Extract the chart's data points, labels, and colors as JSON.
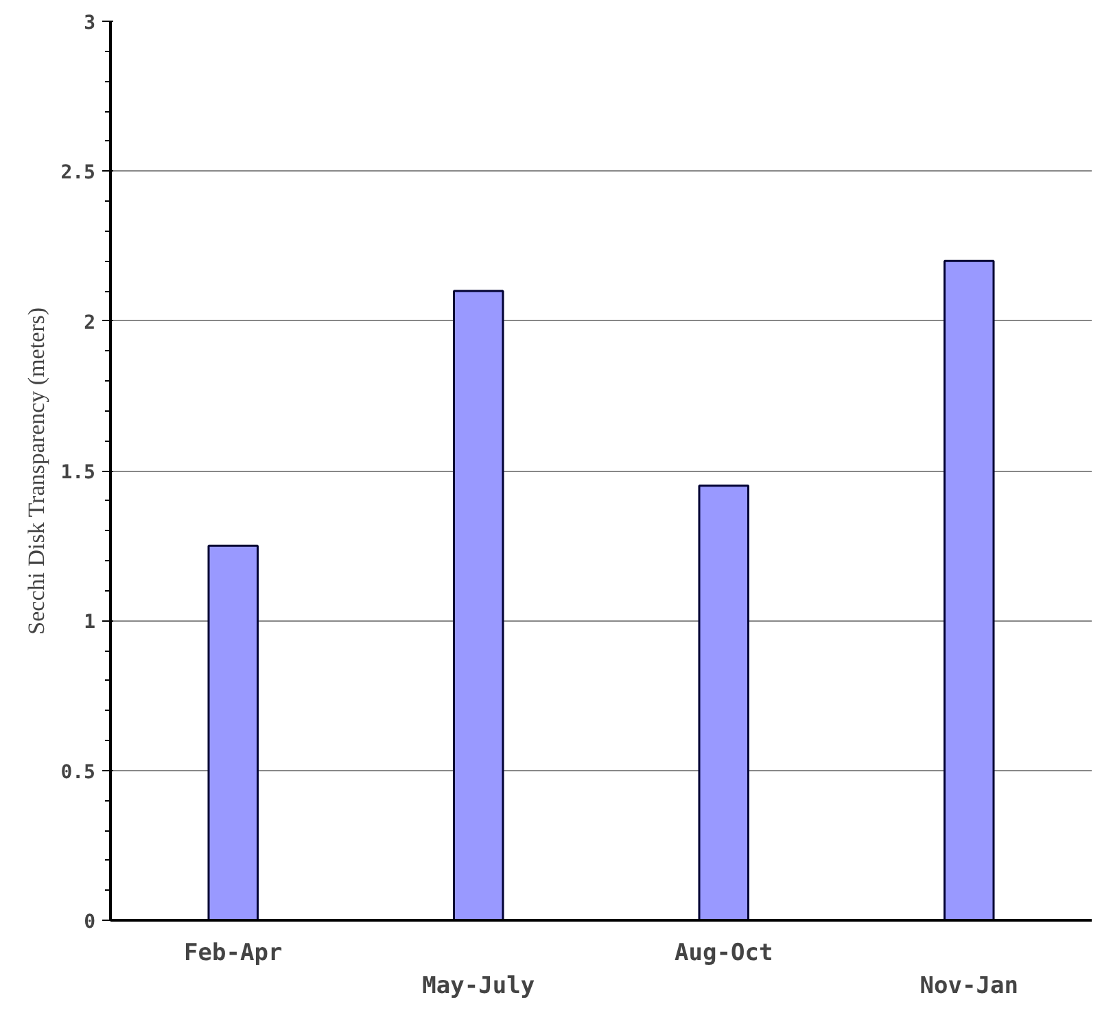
{
  "chart_data": {
    "type": "bar",
    "ylabel": "Secchi Disk Transparency (meters)",
    "categories": [
      "Feb-Apr",
      "May-July",
      "Aug-Oct",
      "Nov-Jan"
    ],
    "values": [
      1.25,
      2.1,
      1.45,
      2.2
    ],
    "color": "#9999ff",
    "ylim": [
      0,
      3
    ],
    "yticks": [
      0,
      0.5,
      1,
      1.5,
      2,
      2.5,
      3
    ],
    "grid": "y"
  }
}
